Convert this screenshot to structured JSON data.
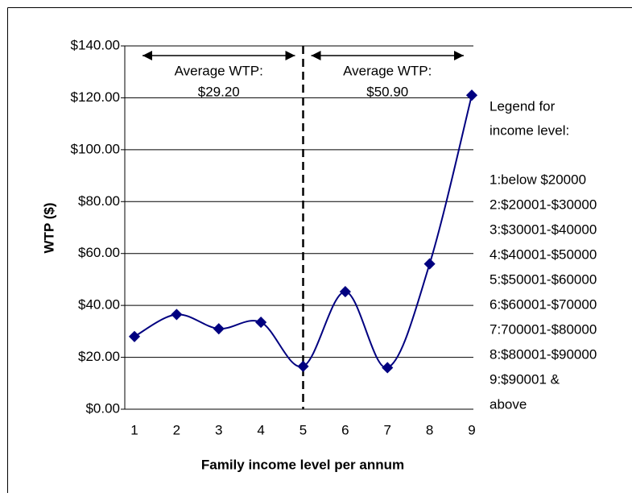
{
  "chart_data": {
    "type": "line",
    "y_label": "WTP ($)",
    "x_label": "Family income level per annum",
    "x": [
      1,
      2,
      3,
      4,
      5,
      6,
      7,
      8,
      9
    ],
    "series": [
      {
        "name": "WTP",
        "color": "#000080",
        "values": [
          28,
          36.5,
          31,
          33.5,
          16.5,
          45.3,
          16,
          56,
          121
        ]
      }
    ],
    "xlim": [
      1,
      9
    ],
    "xticks": [
      1,
      2,
      3,
      4,
      5,
      6,
      7,
      8,
      9
    ],
    "ylim": [
      0,
      140
    ],
    "yticks": [
      {
        "value": 0,
        "label": "$0.00"
      },
      {
        "value": 20,
        "label": "$20.00"
      },
      {
        "value": 40,
        "label": "$40.00"
      },
      {
        "value": 60,
        "label": "$60.00"
      },
      {
        "value": 80,
        "label": "$80.00"
      },
      {
        "value": 100,
        "label": "$100.00"
      },
      {
        "value": 120,
        "label": "$120.00"
      },
      {
        "value": 140,
        "label": "$140.00"
      }
    ],
    "grid": true,
    "smooth": true,
    "divider_x": 5,
    "annotations": [
      {
        "lines": [
          "Average WTP:",
          "$29.20"
        ],
        "x": [
          1,
          5
        ]
      },
      {
        "lines": [
          "Average WTP:",
          "$50.90"
        ],
        "x": [
          5,
          9
        ]
      }
    ],
    "legend_note": [
      "Legend for",
      "income level:",
      "",
      "1:below $20000",
      "2:$20001-$30000",
      "3:$30001-$40000",
      "4:$40001-$50000",
      "5:$50001-$60000",
      "6:$60001-$70000",
      "7:700001-$80000",
      "8:$80001-$90000",
      "9:$90001 &",
      "above"
    ]
  }
}
